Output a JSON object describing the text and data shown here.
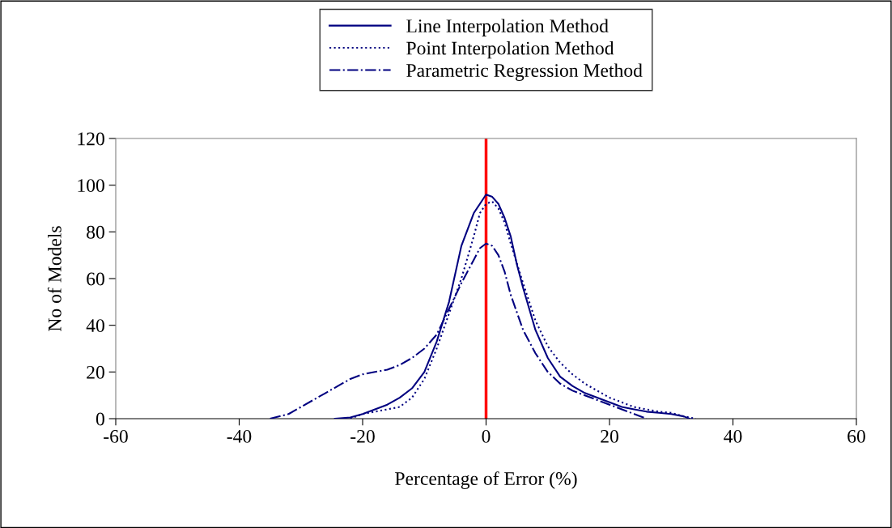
{
  "chart_data": {
    "type": "line",
    "xlabel": "Percentage of Error (%)",
    "ylabel": "No of Models",
    "xlim": [
      -60,
      60
    ],
    "xticks": [
      -60,
      -40,
      -20,
      0,
      20,
      40,
      60
    ],
    "ylim": [
      0,
      120
    ],
    "yticks": [
      0,
      20,
      40,
      60,
      80,
      100,
      120
    ],
    "grid": false,
    "legend": "top",
    "marker": "none",
    "ref_lines": [
      {
        "axis": "x",
        "value": 0,
        "color": "#ff0000",
        "line_style": "solid"
      }
    ],
    "series": [
      {
        "name": "Line Interpolation Method",
        "color": "#000080",
        "line_style": "solid",
        "x": [
          -24.5,
          -22,
          -20,
          -18,
          -16,
          -14,
          -12,
          -10,
          -8,
          -6,
          -4,
          -2,
          -1,
          0,
          1,
          2,
          3,
          4,
          5,
          6,
          8,
          10,
          12,
          14,
          16,
          18,
          20,
          22,
          24,
          26,
          28,
          30,
          32,
          33
        ],
        "values": [
          0,
          0.5,
          2,
          4,
          6,
          9,
          13,
          20,
          33,
          50,
          74,
          88,
          92,
          96,
          95,
          92,
          86,
          78,
          66,
          56,
          38,
          26,
          18,
          14,
          11,
          9,
          7,
          5,
          4,
          3,
          2.5,
          2,
          1,
          0
        ]
      },
      {
        "name": "Point Interpolation Method",
        "color": "#000080",
        "line_style": "dotted",
        "x": [
          -22,
          -20,
          -18,
          -16,
          -14,
          -12,
          -10,
          -8,
          -6,
          -4,
          -2,
          -1,
          0,
          1,
          2,
          3,
          4,
          6,
          8,
          10,
          12,
          14,
          16,
          18,
          20,
          22,
          24,
          26,
          28,
          30,
          32,
          34
        ],
        "values": [
          0,
          2,
          3,
          4,
          5,
          9,
          17,
          30,
          45,
          60,
          78,
          88,
          92,
          93,
          90,
          84,
          75,
          58,
          42,
          31,
          24,
          19,
          15,
          12,
          9,
          7,
          5,
          4,
          3,
          2.5,
          1,
          0
        ]
      },
      {
        "name": "Parametric Regression Method",
        "color": "#000080",
        "line_style": "dashdot",
        "x": [
          -35,
          -32,
          -30,
          -28,
          -26,
          -24,
          -22,
          -20,
          -18,
          -16,
          -14,
          -12,
          -10,
          -8,
          -6,
          -4,
          -2,
          -1,
          0,
          1,
          2,
          3,
          4,
          6,
          8,
          10,
          12,
          14,
          16,
          18,
          20,
          22,
          24,
          26
        ],
        "values": [
          0,
          2,
          5,
          8,
          11,
          14,
          17,
          19,
          20,
          21,
          23,
          26,
          30,
          36,
          47,
          58,
          68,
          73,
          75,
          74,
          70,
          63,
          53,
          38,
          28,
          20,
          15,
          12,
          10,
          8,
          6,
          4,
          2,
          0
        ]
      }
    ]
  }
}
